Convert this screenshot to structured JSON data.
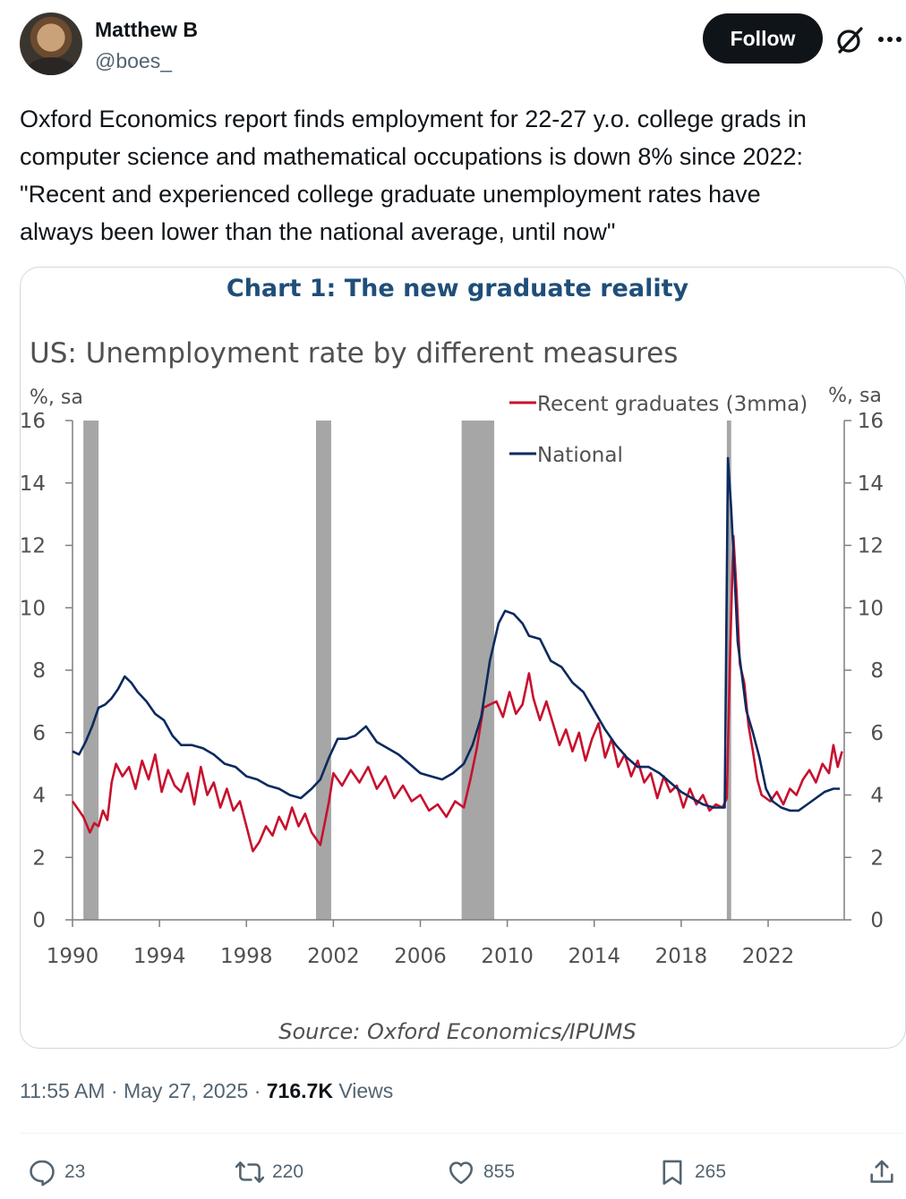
{
  "author": {
    "name": "Matthew B",
    "handle": "@boes_",
    "follow_label": "Follow"
  },
  "tweet": {
    "text": "Oxford Economics report finds employment for 22-27 y.o. college grads in\ncomputer science and mathematical occupations is down 8% since 2022:\n\"Recent and experienced college graduate unemployment rates have\nalways been lower than the national average, until now\"",
    "time": "11:55 AM",
    "date": "May 27, 2025",
    "views_count": "716.7K",
    "views_label": "Views",
    "sep": "·"
  },
  "actions": {
    "replies": "23",
    "reposts": "220",
    "likes": "855",
    "bookmarks": "265"
  },
  "colors": {
    "text": "#0f1419",
    "secondary": "#536471",
    "recent_graduates": "#c8102e",
    "national": "#0b2a5e",
    "recession": "#a6a6a6",
    "chart_title": "#1f4e79"
  },
  "chart_data": {
    "type": "line",
    "heading": "Chart 1: The new graduate reality",
    "title": "US: Unemployment rate by different measures",
    "ylabel_left": "%, sa",
    "ylabel_right": "%, sa",
    "ylim": [
      0,
      16
    ],
    "yticks": [
      "0",
      "2",
      "4",
      "6",
      "8",
      "10",
      "12",
      "14",
      "16"
    ],
    "xlim": [
      1990,
      2025.5
    ],
    "xticks": [
      "1990",
      "1994",
      "1998",
      "2002",
      "2006",
      "2010",
      "2014",
      "2018",
      "2022"
    ],
    "source": "Source: Oxford Economics/IPUMS",
    "recessions": [
      [
        1990.5,
        1991.2
      ],
      [
        2001.2,
        2001.9
      ],
      [
        2007.9,
        2009.4
      ],
      [
        2020.1,
        2020.3
      ]
    ],
    "series": [
      {
        "name": "Recent graduates (3mma)",
        "color": "#c8102e",
        "x": [
          1990.0,
          1990.3,
          1990.5,
          1990.8,
          1991.0,
          1991.2,
          1991.4,
          1991.6,
          1991.8,
          1992.0,
          1992.3,
          1992.6,
          1992.9,
          1993.2,
          1993.5,
          1993.8,
          1994.1,
          1994.4,
          1994.7,
          1995.0,
          1995.3,
          1995.6,
          1995.9,
          1996.2,
          1996.5,
          1996.8,
          1997.1,
          1997.4,
          1997.7,
          1998.0,
          1998.3,
          1998.6,
          1998.9,
          1999.2,
          1999.5,
          1999.8,
          2000.1,
          2000.4,
          2000.7,
          2001.0,
          2001.2,
          2001.4,
          2001.6,
          2001.8,
          2002.0,
          2002.4,
          2002.8,
          2003.2,
          2003.6,
          2004.0,
          2004.4,
          2004.8,
          2005.2,
          2005.6,
          2006.0,
          2006.4,
          2006.8,
          2007.2,
          2007.6,
          2008.0,
          2008.3,
          2008.6,
          2008.9,
          2009.2,
          2009.5,
          2009.8,
          2010.1,
          2010.4,
          2010.7,
          2011.0,
          2011.2,
          2011.5,
          2011.8,
          2012.1,
          2012.4,
          2012.7,
          2013.0,
          2013.3,
          2013.6,
          2013.9,
          2014.2,
          2014.5,
          2014.8,
          2015.1,
          2015.4,
          2015.7,
          2016.0,
          2016.3,
          2016.6,
          2016.9,
          2017.2,
          2017.5,
          2017.8,
          2018.1,
          2018.4,
          2018.7,
          2019.0,
          2019.3,
          2019.6,
          2019.9,
          2020.1,
          2020.25,
          2020.4,
          2020.55,
          2020.7,
          2020.9,
          2021.1,
          2021.3,
          2021.5,
          2021.7,
          2021.9,
          2022.1,
          2022.4,
          2022.7,
          2023.0,
          2023.3,
          2023.6,
          2023.9,
          2024.2,
          2024.5,
          2024.8,
          2025.0,
          2025.2,
          2025.4
        ],
        "values": [
          3.8,
          3.5,
          3.3,
          2.8,
          3.1,
          3.0,
          3.5,
          3.2,
          4.4,
          5.0,
          4.6,
          4.9,
          4.2,
          5.1,
          4.5,
          5.3,
          4.1,
          4.8,
          4.3,
          4.1,
          4.7,
          3.7,
          4.9,
          4.0,
          4.4,
          3.6,
          4.2,
          3.5,
          3.8,
          3.0,
          2.2,
          2.5,
          3.0,
          2.7,
          3.3,
          2.9,
          3.6,
          3.0,
          3.4,
          2.8,
          2.6,
          2.4,
          3.1,
          3.8,
          4.7,
          4.3,
          4.8,
          4.4,
          4.9,
          4.2,
          4.6,
          3.9,
          4.3,
          3.8,
          4.0,
          3.5,
          3.7,
          3.3,
          3.8,
          3.6,
          4.5,
          5.5,
          6.8,
          6.9,
          7.0,
          6.5,
          7.3,
          6.6,
          6.9,
          7.9,
          7.1,
          6.4,
          7.0,
          6.3,
          5.6,
          6.1,
          5.4,
          6.0,
          5.1,
          5.8,
          6.3,
          5.2,
          5.8,
          4.9,
          5.3,
          4.6,
          5.1,
          4.4,
          4.7,
          3.9,
          4.6,
          4.1,
          4.3,
          3.6,
          4.2,
          3.7,
          4.0,
          3.5,
          3.7,
          3.6,
          3.9,
          8.5,
          12.3,
          10.5,
          8.2,
          7.6,
          6.2,
          5.4,
          4.5,
          4.0,
          3.9,
          3.8,
          4.1,
          3.7,
          4.2,
          4.0,
          4.5,
          4.8,
          4.4,
          5.0,
          4.7,
          5.6,
          4.9,
          5.4
        ]
      },
      {
        "name": "National",
        "color": "#0b2a5e",
        "x": [
          1990.0,
          1990.3,
          1990.6,
          1990.9,
          1991.2,
          1991.5,
          1991.8,
          1992.1,
          1992.4,
          1992.7,
          1993.0,
          1993.4,
          1993.8,
          1994.2,
          1994.6,
          1995.0,
          1995.5,
          1996.0,
          1996.5,
          1997.0,
          1997.5,
          1998.0,
          1998.5,
          1999.0,
          1999.5,
          2000.0,
          2000.5,
          2001.0,
          2001.4,
          2001.8,
          2002.2,
          2002.6,
          2003.0,
          2003.5,
          2004.0,
          2004.5,
          2005.0,
          2005.5,
          2006.0,
          2006.5,
          2007.0,
          2007.5,
          2008.0,
          2008.4,
          2008.8,
          2009.2,
          2009.6,
          2009.9,
          2010.3,
          2010.7,
          2011.0,
          2011.5,
          2012.0,
          2012.5,
          2013.0,
          2013.5,
          2014.0,
          2014.5,
          2015.0,
          2015.5,
          2016.0,
          2016.5,
          2017.0,
          2017.5,
          2018.0,
          2018.5,
          2019.0,
          2019.5,
          2020.0,
          2020.15,
          2020.3,
          2020.45,
          2020.6,
          2020.8,
          2021.0,
          2021.3,
          2021.6,
          2021.9,
          2022.2,
          2022.6,
          2023.0,
          2023.4,
          2023.8,
          2024.2,
          2024.6,
          2025.0,
          2025.3
        ],
        "values": [
          5.4,
          5.3,
          5.7,
          6.2,
          6.8,
          6.9,
          7.1,
          7.4,
          7.8,
          7.6,
          7.3,
          7.0,
          6.6,
          6.4,
          5.9,
          5.6,
          5.6,
          5.5,
          5.3,
          5.0,
          4.9,
          4.6,
          4.5,
          4.3,
          4.2,
          4.0,
          3.9,
          4.2,
          4.5,
          5.2,
          5.8,
          5.8,
          5.9,
          6.2,
          5.7,
          5.5,
          5.3,
          5.0,
          4.7,
          4.6,
          4.5,
          4.7,
          5.0,
          5.6,
          6.5,
          8.3,
          9.5,
          9.9,
          9.8,
          9.5,
          9.1,
          9.0,
          8.3,
          8.1,
          7.6,
          7.3,
          6.7,
          6.1,
          5.6,
          5.2,
          4.9,
          4.9,
          4.7,
          4.4,
          4.1,
          3.9,
          3.7,
          3.6,
          3.6,
          14.8,
          13.2,
          11.1,
          8.9,
          7.8,
          6.7,
          6.0,
          5.2,
          4.2,
          3.8,
          3.6,
          3.5,
          3.5,
          3.7,
          3.9,
          4.1,
          4.2,
          4.2
        ]
      }
    ]
  }
}
